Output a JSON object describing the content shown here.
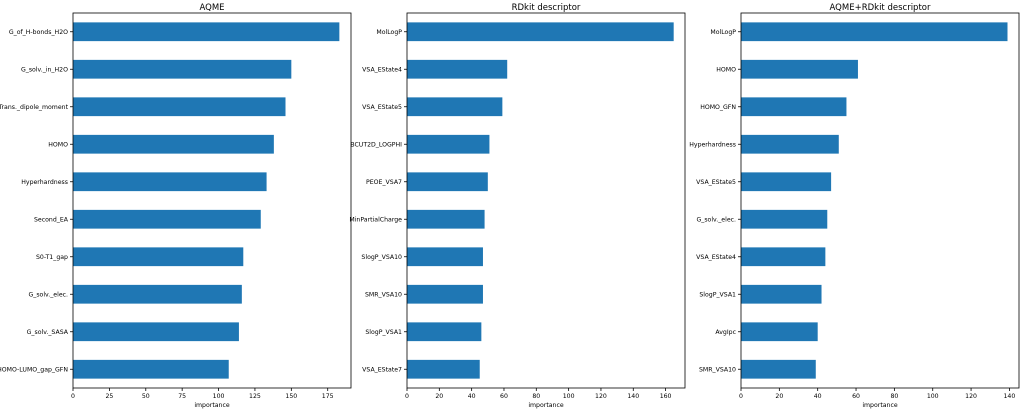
{
  "chart_data": [
    {
      "type": "bar",
      "orientation": "horizontal",
      "title": "AQME",
      "xlabel": "importance",
      "ylabel": "",
      "categories": [
        "G_of_H-bonds_H2O",
        "G_solv._in_H2O",
        "Trans._dipole_moment",
        "HOMO",
        "Hyperhardness",
        "Second_EA",
        "S0-T1_gap",
        "G_solv._elec.",
        "G_solv._SASA",
        "HOMO-LUMO_gap_GFN"
      ],
      "values": [
        183,
        150,
        146,
        138,
        133,
        129,
        117,
        116,
        114,
        107
      ],
      "xlim": [
        0,
        191
      ],
      "xticks": [
        0,
        25,
        50,
        75,
        100,
        125,
        150,
        175
      ],
      "color": "#1f77b4",
      "grid": false
    },
    {
      "type": "bar",
      "orientation": "horizontal",
      "title": "RDkit descriptor",
      "xlabel": "importance",
      "ylabel": "",
      "categories": [
        "MolLogP",
        "VSA_EState4",
        "VSA_EState5",
        "BCUT2D_LOGPHI",
        "PEOE_VSA7",
        "MinPartialCharge",
        "SlogP_VSA10",
        "SMR_VSA10",
        "SlogP_VSA1",
        "VSA_EState7"
      ],
      "values": [
        165,
        62,
        59,
        51,
        50,
        48,
        47,
        47,
        46,
        45
      ],
      "xlim": [
        0,
        172
      ],
      "xticks": [
        0,
        20,
        40,
        60,
        80,
        100,
        120,
        140,
        160
      ],
      "color": "#1f77b4",
      "grid": false
    },
    {
      "type": "bar",
      "orientation": "horizontal",
      "title": "AQME+RDkit descriptor",
      "xlabel": "importance",
      "ylabel": "",
      "categories": [
        "MolLogP",
        "HOMO",
        "HOMO_GFN",
        "Hyperhardness",
        "VSA_EState5",
        "G_solv._elec.",
        "VSA_EState4",
        "SlogP_VSA1",
        "AvgIpc",
        "SMR_VSA10"
      ],
      "values": [
        139,
        61,
        55,
        51,
        47,
        45,
        44,
        42,
        40,
        39
      ],
      "xlim": [
        0,
        145
      ],
      "xticks": [
        0,
        20,
        40,
        60,
        80,
        100,
        120,
        140
      ],
      "color": "#1f77b4",
      "grid": false
    }
  ]
}
